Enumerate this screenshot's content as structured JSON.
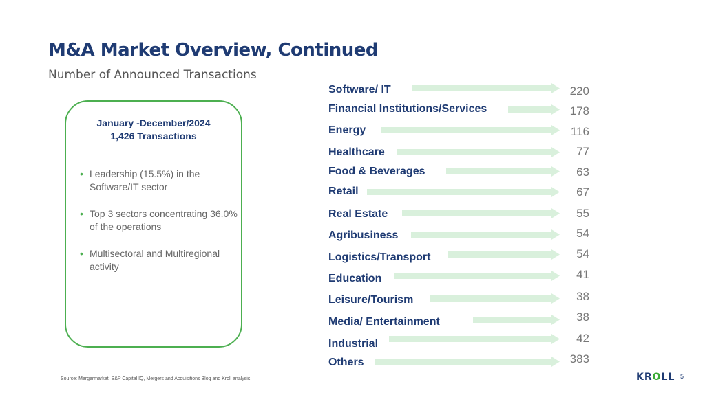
{
  "slide": {
    "title": "M&A Market Overview, Continued",
    "subtitle": "Number of Announced Transactions"
  },
  "summary_box": {
    "period": "January -December/2024",
    "transactions": "1,426 Transactions",
    "bullets": [
      "Leadership (15.5%) in the Software/IT sector",
      "Top 3 sectors concentrating 36.0% of the operations",
      "Multisectoral and Multiregional activity"
    ]
  },
  "sectors": [
    {
      "label": "Software/ IT",
      "value": "220"
    },
    {
      "label": "Financial Institutions/Services",
      "value": "178"
    },
    {
      "label": "Energy",
      "value": "116"
    },
    {
      "label": "Healthcare",
      "value": "77"
    },
    {
      "label": "Food & Beverages",
      "value": "63"
    },
    {
      "label": "Retail",
      "value": "67"
    },
    {
      "label": "Real Estate",
      "value": "55"
    },
    {
      "label": "Agribusiness",
      "value": "54"
    },
    {
      "label": "Logistics/Transport",
      "value": "54"
    },
    {
      "label": "Education",
      "value": "41"
    },
    {
      "label": "Leisure/Tourism",
      "value": "38"
    },
    {
      "label": "Media/ Entertainment",
      "value": "38"
    },
    {
      "label": "Industrial",
      "value": "42"
    },
    {
      "label": "Others",
      "value": "383"
    }
  ],
  "footer": {
    "source": "Source: Mergermarket, S&P Capital IQ, Mergers and Acquisitions Blog and Kroll analysis",
    "logo_prefix": "KR",
    "logo_o": "O",
    "logo_suffix": "LL",
    "page_number": "5"
  },
  "colors": {
    "title": "#1f3b73",
    "accent_green": "#4caf50",
    "arrow_fill": "#d9f0dc"
  }
}
